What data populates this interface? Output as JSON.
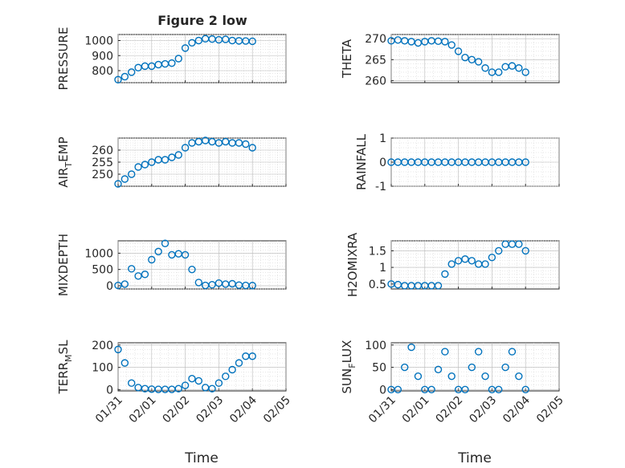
{
  "title": "Figure 2 low",
  "xlabel": "Time",
  "x_tick_labels": [
    "01/31",
    "02/01",
    "02/02",
    "02/03",
    "02/04",
    "02/05"
  ],
  "marker_color": "#0072bd",
  "chart_data": [
    {
      "type": "scatter",
      "ylabel": "PRESSURE",
      "ylim": [
        720,
        1040
      ],
      "yticks": [
        800,
        900,
        1000
      ],
      "x": [
        0.0,
        0.2,
        0.4,
        0.6,
        0.8,
        1.0,
        1.2,
        1.4,
        1.6,
        1.8,
        2.0,
        2.2,
        2.4,
        2.6,
        2.8,
        3.0,
        3.2,
        3.4,
        3.6,
        3.8,
        4.0
      ],
      "y": [
        740,
        760,
        790,
        820,
        830,
        830,
        840,
        845,
        850,
        880,
        950,
        985,
        1000,
        1012,
        1010,
        1005,
        1008,
        1000,
        998,
        997,
        995
      ]
    },
    {
      "type": "scatter",
      "ylabel": "THETA",
      "ylim": [
        259.5,
        271
      ],
      "yticks": [
        260,
        265,
        270
      ],
      "x": [
        0.0,
        0.2,
        0.4,
        0.6,
        0.8,
        1.0,
        1.2,
        1.4,
        1.6,
        1.8,
        2.0,
        2.2,
        2.4,
        2.6,
        2.8,
        3.0,
        3.2,
        3.4,
        3.6,
        3.8,
        4.0
      ],
      "y": [
        269.5,
        269.7,
        269.5,
        269.3,
        269.0,
        269.3,
        269.5,
        269.4,
        269.3,
        268.5,
        267.0,
        265.5,
        265.0,
        264.5,
        263.0,
        262.0,
        262.0,
        263.3,
        263.5,
        263.0,
        262.0
      ]
    },
    {
      "type": "scatter",
      "ylabel": "AIR_TEMP",
      "ylim": [
        245,
        265
      ],
      "yticks": [
        250,
        255,
        260
      ],
      "x": [
        0.0,
        0.2,
        0.4,
        0.6,
        0.8,
        1.0,
        1.2,
        1.4,
        1.6,
        1.8,
        2.0,
        2.2,
        2.4,
        2.6,
        2.8,
        3.0,
        3.2,
        3.4,
        3.6,
        3.8,
        4.0
      ],
      "y": [
        246,
        248,
        250,
        253,
        254,
        255,
        256,
        256,
        257,
        258,
        261,
        263,
        263.5,
        264,
        263.5,
        263,
        263.5,
        263,
        263,
        262.5,
        261
      ]
    },
    {
      "type": "scatter",
      "ylabel": "RAINFALL",
      "ylim": [
        -1,
        1
      ],
      "yticks": [
        -1,
        0,
        1
      ],
      "x": [
        0.0,
        0.2,
        0.4,
        0.6,
        0.8,
        1.0,
        1.2,
        1.4,
        1.6,
        1.8,
        2.0,
        2.2,
        2.4,
        2.6,
        2.8,
        3.0,
        3.2,
        3.4,
        3.6,
        3.8,
        4.0
      ],
      "y": [
        0,
        0,
        0,
        0,
        0,
        0,
        0,
        0,
        0,
        0,
        0,
        0,
        0,
        0,
        0,
        0,
        0,
        0,
        0,
        0,
        0
      ]
    },
    {
      "type": "scatter",
      "ylabel": "MIXDEPTH",
      "ylim": [
        -100,
        1380
      ],
      "yticks": [
        0,
        500,
        1000
      ],
      "x": [
        0.0,
        0.2,
        0.4,
        0.6,
        0.8,
        1.0,
        1.2,
        1.4,
        1.6,
        1.8,
        2.0,
        2.2,
        2.4,
        2.6,
        2.8,
        3.0,
        3.2,
        3.4,
        3.6,
        3.8,
        4.0
      ],
      "y": [
        10,
        50,
        520,
        300,
        350,
        800,
        1050,
        1300,
        950,
        980,
        950,
        500,
        100,
        10,
        30,
        80,
        50,
        60,
        20,
        10,
        5
      ]
    },
    {
      "type": "scatter",
      "ylabel": "H2OMIXRA",
      "ylim": [
        0.35,
        1.8
      ],
      "yticks": [
        0.5,
        1,
        1.5
      ],
      "x": [
        0.0,
        0.2,
        0.4,
        0.6,
        0.8,
        1.0,
        1.2,
        1.4,
        1.6,
        1.8,
        2.0,
        2.2,
        2.4,
        2.6,
        2.8,
        3.0,
        3.2,
        3.4,
        3.6,
        3.8,
        4.0
      ],
      "y": [
        0.5,
        0.48,
        0.45,
        0.45,
        0.45,
        0.45,
        0.45,
        0.45,
        0.8,
        1.1,
        1.2,
        1.25,
        1.2,
        1.1,
        1.1,
        1.3,
        1.5,
        1.7,
        1.7,
        1.7,
        1.5
      ]
    },
    {
      "type": "scatter",
      "ylabel": "TERR_MSL",
      "ylim": [
        -5,
        210
      ],
      "yticks": [
        0,
        100,
        200
      ],
      "x": [
        0.0,
        0.2,
        0.4,
        0.6,
        0.8,
        1.0,
        1.2,
        1.4,
        1.6,
        1.8,
        2.0,
        2.2,
        2.4,
        2.6,
        2.8,
        3.0,
        3.2,
        3.4,
        3.6,
        3.8,
        4.0
      ],
      "y": [
        180,
        120,
        30,
        10,
        5,
        3,
        2,
        2,
        2,
        5,
        20,
        50,
        40,
        10,
        5,
        30,
        60,
        90,
        120,
        150,
        150
      ]
    },
    {
      "type": "scatter",
      "ylabel": "SUN_FLUX",
      "ylim": [
        -3,
        105
      ],
      "yticks": [
        0,
        50,
        100
      ],
      "x": [
        0.0,
        0.2,
        0.4,
        0.6,
        0.8,
        1.0,
        1.2,
        1.4,
        1.6,
        1.8,
        2.0,
        2.2,
        2.4,
        2.6,
        2.8,
        3.0,
        3.2,
        3.4,
        3.6,
        3.8,
        4.0
      ],
      "y": [
        0,
        0,
        50,
        95,
        30,
        0,
        0,
        45,
        85,
        30,
        0,
        0,
        50,
        85,
        30,
        0,
        0,
        50,
        85,
        30,
        0
      ]
    }
  ]
}
